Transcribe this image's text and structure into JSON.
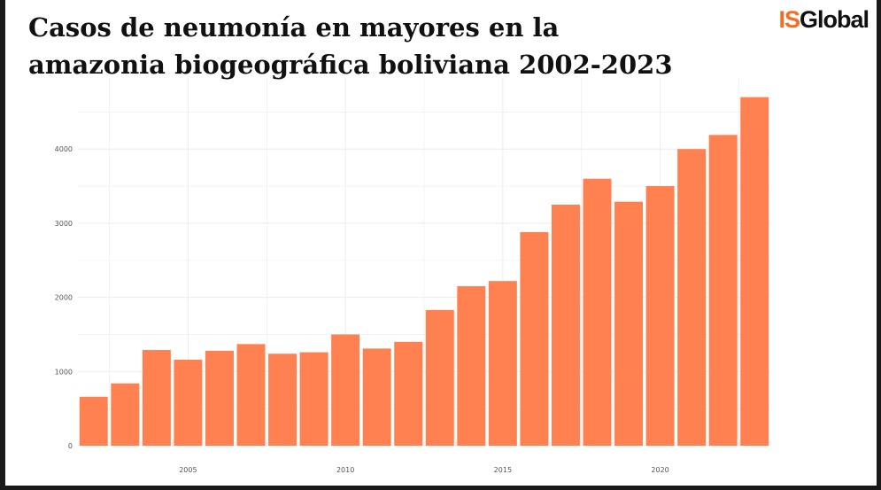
{
  "title_lines": [
    "Casos de neumonía en mayores en la",
    "amazonia biogeográfica boliviana 2002-2023"
  ],
  "logo": {
    "is": "IS",
    "global": "Global"
  },
  "chart_data": {
    "type": "bar",
    "title": "Casos de neumonía en mayores en la amazonia biogeográfica boliviana 2002-2023",
    "xlabel": "",
    "ylabel": "",
    "x": [
      2002,
      2003,
      2004,
      2005,
      2006,
      2007,
      2008,
      2009,
      2010,
      2011,
      2012,
      2013,
      2014,
      2015,
      2016,
      2017,
      2018,
      2019,
      2020,
      2021,
      2022,
      2023
    ],
    "values": [
      660,
      840,
      1290,
      1160,
      1280,
      1370,
      1240,
      1260,
      1500,
      1310,
      1400,
      1830,
      2150,
      2220,
      2880,
      3250,
      3600,
      3290,
      3500,
      4000,
      4190,
      4700
    ],
    "xticks": [
      2005,
      2010,
      2015,
      2020
    ],
    "yticks": [
      0,
      1000,
      2000,
      3000,
      4000
    ],
    "xlim": [
      2001.5,
      2023.5
    ],
    "ylim": [
      0,
      5000
    ],
    "grid": true,
    "legend": "none",
    "bar_color": "#ff8050",
    "grid_color": "#ececec"
  }
}
